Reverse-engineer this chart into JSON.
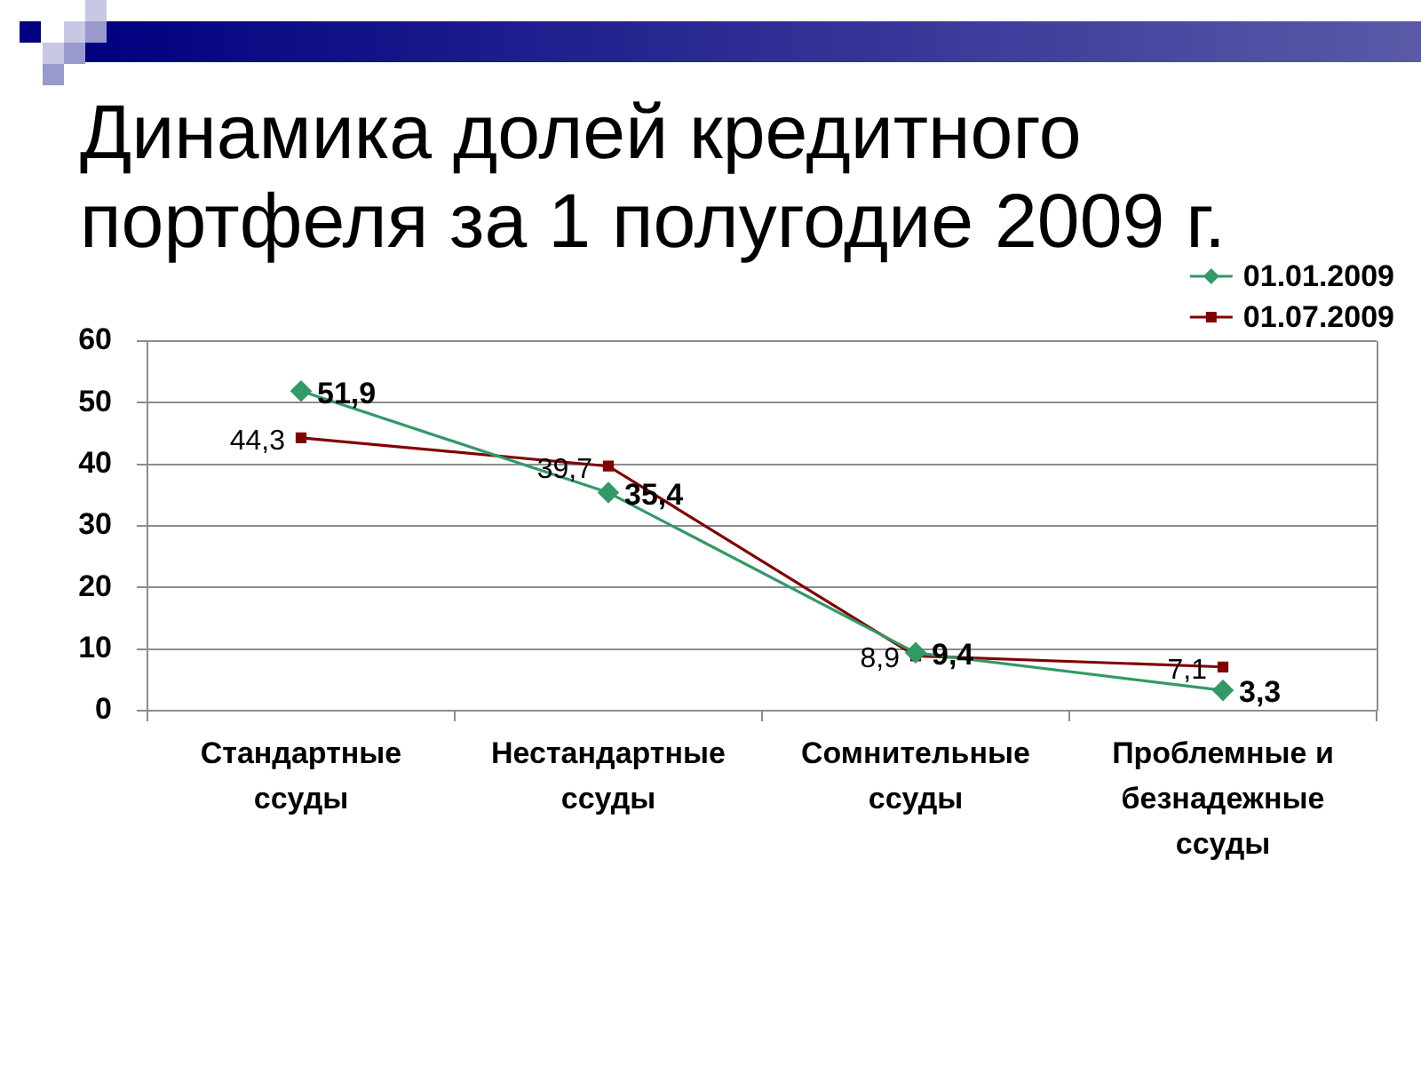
{
  "chart_data": {
    "type": "line",
    "title": "Динамика долей кредитного портфеля за 1 полугодие 2009 г.",
    "categories": [
      "Стандартные ссуды",
      "Нестандартные ссуды",
      "Сомнительные ссуды",
      "Проблемные и безнадежные ссуды"
    ],
    "series": [
      {
        "name": "01.01.2009",
        "color": "#339966",
        "marker": "diamond",
        "values": [
          51.9,
          35.4,
          9.4,
          3.3
        ],
        "value_labels": [
          "51,9",
          "35,4",
          "9,4",
          "3,3"
        ]
      },
      {
        "name": "01.07.2009",
        "color": "#800000",
        "marker": "square",
        "values": [
          44.3,
          39.7,
          8.9,
          7.1
        ],
        "value_labels": [
          "44,3",
          "39,7",
          "8,9",
          "7,1"
        ]
      }
    ],
    "ylim": [
      0,
      60
    ],
    "yticks": [
      0,
      10,
      20,
      30,
      40,
      50,
      60
    ],
    "grid": "y",
    "legend": "top right"
  }
}
